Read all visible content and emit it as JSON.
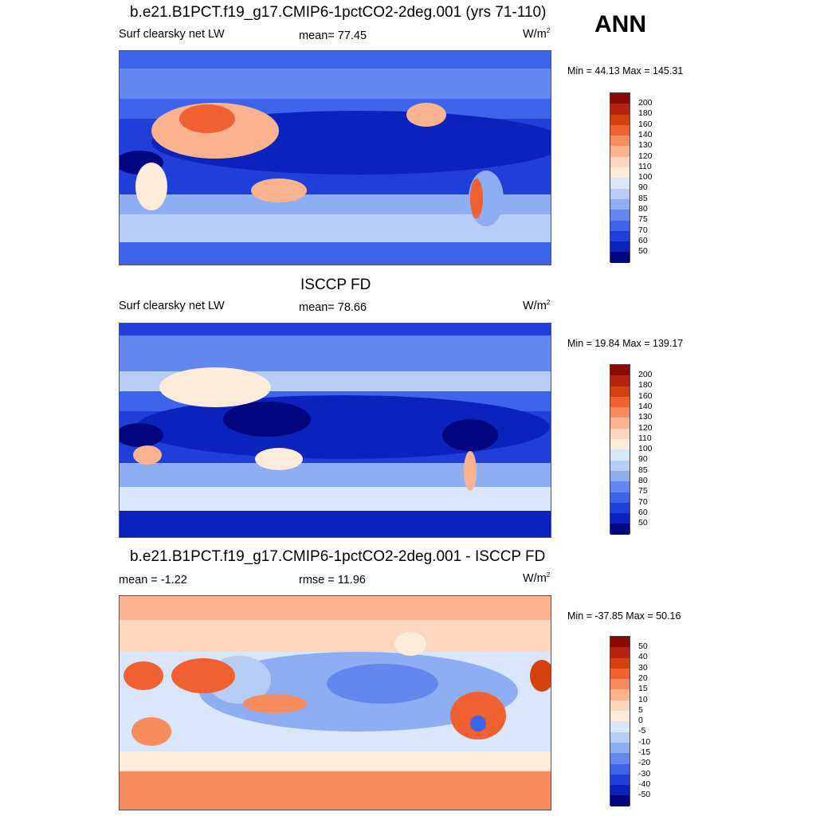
{
  "label_ann": "ANN",
  "panels": [
    {
      "title": "b.e21.B1PCT.f19_g17.CMIP6-1pctCO2-2deg.001 (yrs 71-110)",
      "left": "Surf clearsky net LW",
      "mid": "mean=  77.45",
      "unit": "W/m",
      "unit_sup": "2",
      "minmax": "Min =  44.13 Max = 145.31",
      "levels": [
        "200",
        "180",
        "160",
        "140",
        "130",
        "120",
        "110",
        "100",
        "90",
        "85",
        "80",
        "75",
        "70",
        "60",
        "50"
      ],
      "colors": [
        "#8b0a00",
        "#b4230e",
        "#d5400f",
        "#f06030",
        "#f78c5e",
        "#fbb38f",
        "#fdd7bd",
        "#fcebd9",
        "#d9e6fb",
        "#b7cdf6",
        "#8eadf3",
        "#6288f0",
        "#3d64ea",
        "#1f3fd8",
        "#0c22bd",
        "#02077f"
      ]
    },
    {
      "title": "ISCCP FD",
      "left": "Surf clearsky net LW",
      "mid": "mean=  78.66",
      "unit": "W/m",
      "unit_sup": "2",
      "minmax": "Min =  19.84 Max = 139.17",
      "levels": [
        "200",
        "180",
        "160",
        "140",
        "130",
        "120",
        "110",
        "100",
        "90",
        "85",
        "80",
        "75",
        "70",
        "60",
        "50"
      ],
      "colors": [
        "#8b0a00",
        "#b4230e",
        "#d5400f",
        "#f06030",
        "#f78c5e",
        "#fbb38f",
        "#fdd7bd",
        "#fcebd9",
        "#d9e6fb",
        "#b7cdf6",
        "#8eadf3",
        "#6288f0",
        "#3d64ea",
        "#1f3fd8",
        "#0c22bd",
        "#02077f"
      ]
    },
    {
      "title": "b.e21.B1PCT.f19_g17.CMIP6-1pctCO2-2deg.001 - ISCCP FD",
      "left": "mean =  -1.22",
      "mid": "rmse =  11.96",
      "unit": "W/m",
      "unit_sup": "2",
      "minmax": "Min = -37.85 Max =  50.16",
      "levels": [
        "50",
        "40",
        "30",
        "20",
        "15",
        "10",
        "5",
        "0",
        "-5",
        "-10",
        "-15",
        "-20",
        "-30",
        "-40",
        "-50"
      ],
      "colors": [
        "#8b0a00",
        "#b4230e",
        "#d5400f",
        "#f06030",
        "#f78c5e",
        "#fbb38f",
        "#fdd7bd",
        "#fcebd9",
        "#d9e6fb",
        "#b7cdf6",
        "#8eadf3",
        "#6288f0",
        "#3d64ea",
        "#1f3fd8",
        "#0c22bd",
        "#02077f"
      ]
    }
  ]
}
